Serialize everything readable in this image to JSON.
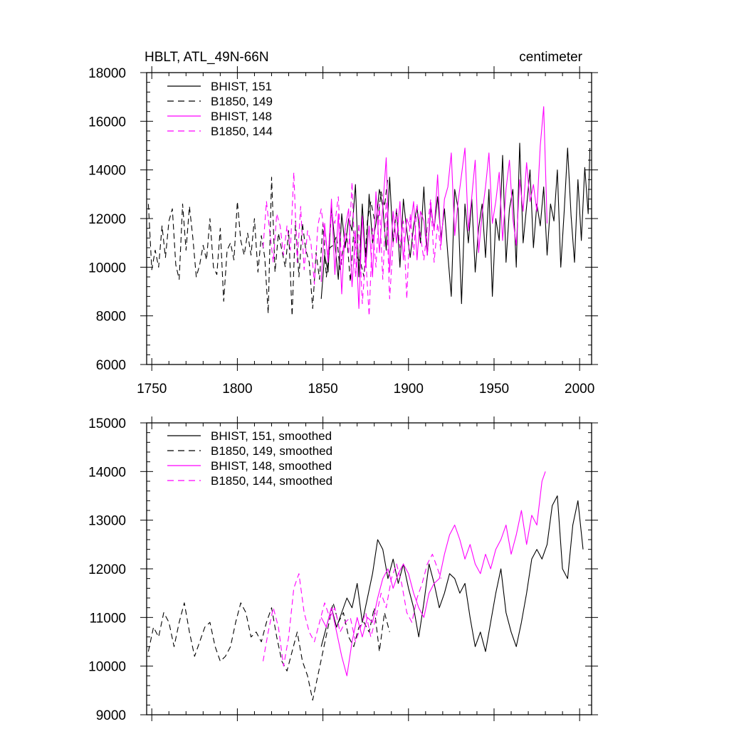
{
  "colors": {
    "black": "#000000",
    "magenta": "#ff00ff"
  },
  "chart_data": [
    {
      "type": "line",
      "title": "HBLT, ATL_49N-66N",
      "units": "centimeter",
      "xlim": [
        1747,
        2007
      ],
      "ylim": [
        6000,
        18000
      ],
      "x_ticks": [
        1750,
        1800,
        1850,
        1900,
        1950,
        2000
      ],
      "x_tick_labels": [
        "1750",
        "1800",
        "1850",
        "1900",
        "1950",
        "2000"
      ],
      "y_ticks": [
        6000,
        8000,
        10000,
        12000,
        14000,
        16000,
        18000
      ],
      "y_tick_labels": [
        "6000",
        "8000",
        "10000",
        "12000",
        "14000",
        "16000",
        "18000"
      ],
      "legend": [
        "BHIST, 151",
        "B1850, 149",
        "BHIST, 148",
        "B1850, 144"
      ],
      "series": [
        {
          "name": "BHIST, 151",
          "color": "#000000",
          "dash": false,
          "x": [
            1849,
            1851,
            1853,
            1855,
            1857,
            1859,
            1861,
            1863,
            1865,
            1867,
            1869,
            1871,
            1873,
            1875,
            1877,
            1879,
            1881,
            1883,
            1885,
            1887,
            1889,
            1891,
            1893,
            1895,
            1897,
            1899,
            1901,
            1903,
            1905,
            1907,
            1909,
            1911,
            1913,
            1915,
            1917,
            1919,
            1921,
            1923,
            1925,
            1927,
            1929,
            1931,
            1933,
            1935,
            1937,
            1939,
            1941,
            1943,
            1945,
            1947,
            1949,
            1951,
            1953,
            1955,
            1957,
            1959,
            1961,
            1963,
            1965,
            1967,
            1969,
            1971,
            1973,
            1975,
            1977,
            1979,
            1981,
            1983,
            1985,
            1987,
            1989,
            1991,
            1993,
            1995,
            1997,
            1999,
            2001,
            2003,
            2005,
            2006
          ],
          "y": [
            8700,
            10500,
            9800,
            12500,
            11000,
            9500,
            12200,
            10800,
            12000,
            11500,
            13400,
            9600,
            12600,
            10200,
            13000,
            11000,
            11800,
            13200,
            12500,
            10700,
            13700,
            11000,
            12400,
            10000,
            12800,
            11500,
            10400,
            11700,
            12500,
            11000,
            13300,
            10500,
            12400,
            11600,
            12900,
            11200,
            12400,
            10500,
            8800,
            13200,
            12400,
            8500,
            12600,
            11000,
            12800,
            9800,
            11600,
            12600,
            10400,
            13200,
            8800,
            12000,
            11100,
            14600,
            10200,
            12400,
            13200,
            10000,
            15100,
            11000,
            12500,
            14000,
            10800,
            12600,
            11700,
            13300,
            10500,
            12600,
            11900,
            14000,
            10000,
            12300,
            14900,
            12100,
            10200,
            13600,
            11100,
            14100,
            12200,
            14900
          ]
        },
        {
          "name": "B1850, 149",
          "color": "#000000",
          "dash": true,
          "x": [
            1748,
            1750,
            1752,
            1754,
            1756,
            1758,
            1760,
            1762,
            1764,
            1766,
            1768,
            1770,
            1772,
            1774,
            1776,
            1778,
            1780,
            1782,
            1784,
            1786,
            1788,
            1790,
            1792,
            1794,
            1796,
            1798,
            1800,
            1802,
            1804,
            1806,
            1808,
            1810,
            1812,
            1814,
            1816,
            1818,
            1820,
            1822,
            1824,
            1826,
            1828,
            1830,
            1832,
            1834,
            1836,
            1838,
            1840,
            1842,
            1844,
            1846,
            1848,
            1850,
            1852,
            1854,
            1856,
            1858,
            1860,
            1862,
            1864,
            1866,
            1868,
            1870,
            1872,
            1874,
            1876,
            1878,
            1880,
            1882,
            1884,
            1886,
            1888
          ],
          "y": [
            12600,
            9900,
            10700,
            10000,
            11700,
            10400,
            11900,
            12400,
            10100,
            9500,
            12600,
            10700,
            12500,
            11200,
            9600,
            10100,
            10900,
            10300,
            12000,
            10000,
            9700,
            11600,
            8600,
            10700,
            11000,
            10300,
            12700,
            11100,
            10500,
            11400,
            10500,
            12000,
            9800,
            11300,
            10400,
            8100,
            13700,
            9800,
            11400,
            10700,
            10000,
            11500,
            8000,
            11900,
            9600,
            11800,
            10700,
            10200,
            8300,
            10600,
            9500,
            11800,
            9600,
            10800,
            10900,
            11300,
            9900,
            10800,
            11200,
            9400,
            11500,
            10400,
            10200,
            9600,
            11900,
            12700,
            12000,
            11900,
            13100,
            12500,
            13700
          ]
        },
        {
          "name": "BHIST, 148",
          "color": "#ff00ff",
          "dash": false,
          "x": [
            1849,
            1851,
            1853,
            1855,
            1857,
            1859,
            1861,
            1863,
            1865,
            1867,
            1869,
            1871,
            1873,
            1875,
            1877,
            1879,
            1881,
            1883,
            1885,
            1887,
            1889,
            1891,
            1893,
            1895,
            1897,
            1899,
            1901,
            1903,
            1905,
            1907,
            1909,
            1911,
            1913,
            1915,
            1917,
            1919,
            1921,
            1923,
            1925,
            1927,
            1929,
            1931,
            1933,
            1935,
            1937,
            1939,
            1941,
            1943,
            1945,
            1947,
            1949,
            1951,
            1953,
            1955,
            1957,
            1959,
            1961,
            1963,
            1965,
            1967,
            1969,
            1971,
            1973,
            1975,
            1977,
            1979,
            1981
          ],
          "y": [
            9400,
            11800,
            10200,
            12800,
            9700,
            12200,
            8900,
            11600,
            12400,
            9200,
            11500,
            8300,
            12100,
            10000,
            11700,
            9600,
            13100,
            10600,
            12500,
            14500,
            9800,
            12300,
            11000,
            12700,
            10300,
            12000,
            11600,
            12700,
            10300,
            12300,
            11900,
            10500,
            12600,
            11500,
            13800,
            10900,
            12800,
            13300,
            14700,
            11300,
            12700,
            13800,
            14900,
            11500,
            12900,
            14400,
            10600,
            12200,
            13300,
            14700,
            11800,
            12700,
            13900,
            11100,
            13200,
            14400,
            12000,
            10900,
            13600,
            12300,
            14300,
            12700,
            13400,
            12300,
            15000,
            16600,
            11800
          ]
        },
        {
          "name": "B1850, 144",
          "color": "#ff00ff",
          "dash": true,
          "x": [
            1815,
            1817,
            1819,
            1821,
            1823,
            1825,
            1827,
            1829,
            1831,
            1833,
            1835,
            1837,
            1839,
            1841,
            1843,
            1845,
            1847,
            1849,
            1851,
            1853,
            1855,
            1857,
            1859,
            1861,
            1863,
            1865,
            1867,
            1869,
            1871,
            1873,
            1875,
            1877,
            1879,
            1881,
            1883,
            1885,
            1887,
            1889,
            1891,
            1893,
            1895,
            1897,
            1899,
            1901,
            1903,
            1905,
            1907,
            1909,
            1911,
            1913,
            1915,
            1917,
            1919
          ],
          "y": [
            10800,
            12700,
            11400,
            10200,
            12200,
            11700,
            10500,
            11700,
            10700,
            13900,
            10200,
            12500,
            9900,
            11500,
            11000,
            9300,
            11700,
            12400,
            11300,
            10500,
            12200,
            11800,
            12900,
            10100,
            11600,
            10600,
            13500,
            9600,
            11800,
            8500,
            10400,
            8000,
            11600,
            10000,
            12600,
            9500,
            12700,
            8700,
            11000,
            12400,
            10800,
            11900,
            8700,
            12200,
            10500,
            12600,
            11300,
            10300,
            11600,
            12800,
            10200,
            11800,
            10600
          ]
        }
      ]
    },
    {
      "type": "line",
      "title": "",
      "xlim": [
        1747,
        2007
      ],
      "ylim": [
        9000,
        15000
      ],
      "x_ticks": [
        1750,
        1800,
        1850,
        1900,
        1950,
        2000
      ],
      "y_ticks": [
        9000,
        10000,
        11000,
        12000,
        13000,
        14000,
        15000
      ],
      "y_tick_labels": [
        "9000",
        "10000",
        "11000",
        "12000",
        "13000",
        "14000",
        "15000"
      ],
      "legend": [
        "BHIST, 151, smoothed",
        "B1850, 149, smoothed",
        "BHIST, 148, smoothed",
        "B1850, 144, smoothed"
      ],
      "series": [
        {
          "name": "BHIST, 151, smoothed",
          "color": "#000000",
          "dash": false,
          "x": [
            1849,
            1852,
            1855,
            1858,
            1861,
            1864,
            1867,
            1870,
            1873,
            1876,
            1879,
            1882,
            1885,
            1888,
            1891,
            1894,
            1897,
            1900,
            1903,
            1906,
            1909,
            1912,
            1915,
            1918,
            1921,
            1924,
            1927,
            1930,
            1933,
            1936,
            1939,
            1942,
            1945,
            1948,
            1951,
            1954,
            1957,
            1960,
            1963,
            1966,
            1969,
            1972,
            1975,
            1978,
            1981,
            1984,
            1987,
            1990,
            1993,
            1996,
            1999,
            2002
          ],
          "y": [
            10400,
            10800,
            11200,
            10800,
            11100,
            11400,
            11200,
            11700,
            10900,
            11400,
            11900,
            12600,
            12400,
            11800,
            12200,
            11700,
            12100,
            11600,
            11200,
            10600,
            11300,
            12100,
            11700,
            11200,
            11500,
            11900,
            11800,
            11500,
            11700,
            11000,
            10400,
            10700,
            10300,
            10900,
            11500,
            12000,
            11100,
            10700,
            10400,
            10900,
            11500,
            12200,
            12400,
            12200,
            12500,
            13300,
            13500,
            12000,
            11800,
            12900,
            13400,
            12400
          ]
        },
        {
          "name": "B1850, 149, smoothed",
          "color": "#000000",
          "dash": true,
          "x": [
            1748,
            1751,
            1754,
            1757,
            1760,
            1763,
            1766,
            1769,
            1772,
            1775,
            1778,
            1781,
            1784,
            1787,
            1790,
            1793,
            1796,
            1799,
            1802,
            1805,
            1808,
            1811,
            1814,
            1817,
            1820,
            1823,
            1826,
            1829,
            1832,
            1835,
            1838,
            1841,
            1844,
            1847,
            1850,
            1853,
            1856,
            1859,
            1862,
            1865,
            1868,
            1871,
            1874,
            1877,
            1880,
            1883,
            1886,
            1889
          ],
          "y": [
            10300,
            10800,
            10600,
            11100,
            10900,
            10400,
            10900,
            11300,
            10700,
            10200,
            10500,
            10800,
            10900,
            10400,
            10100,
            10200,
            10400,
            10900,
            11300,
            11100,
            10600,
            10700,
            10500,
            10900,
            11200,
            10600,
            10100,
            9900,
            10300,
            10700,
            10100,
            9800,
            9300,
            9800,
            10300,
            10800,
            11300,
            10900,
            11100,
            10600,
            10400,
            10800,
            10900,
            10700,
            11200,
            10300,
            11100,
            10700
          ]
        },
        {
          "name": "BHIST, 148, smoothed",
          "color": "#ff00ff",
          "dash": false,
          "x": [
            1849,
            1852,
            1855,
            1858,
            1861,
            1864,
            1867,
            1870,
            1873,
            1876,
            1879,
            1882,
            1885,
            1888,
            1891,
            1894,
            1897,
            1900,
            1903,
            1906,
            1909,
            1912,
            1915,
            1918,
            1921,
            1924,
            1927,
            1930,
            1933,
            1936,
            1939,
            1942,
            1945,
            1948,
            1951,
            1954,
            1957,
            1960,
            1963,
            1966,
            1969,
            1972,
            1975,
            1978,
            1980
          ],
          "y": [
            11000,
            10800,
            11200,
            10700,
            10200,
            9800,
            10500,
            11000,
            10600,
            11000,
            10900,
            11400,
            11800,
            12000,
            11600,
            11900,
            12100,
            11900,
            11500,
            11200,
            11000,
            11500,
            11700,
            11800,
            12300,
            12700,
            12900,
            12600,
            12200,
            12500,
            12100,
            11900,
            12300,
            12000,
            12400,
            12600,
            12900,
            12300,
            12700,
            13200,
            12500,
            13100,
            12900,
            13800,
            14000
          ]
        },
        {
          "name": "B1850, 144, smoothed",
          "color": "#ff00ff",
          "dash": true,
          "x": [
            1815,
            1818,
            1821,
            1824,
            1827,
            1830,
            1833,
            1836,
            1839,
            1842,
            1845,
            1848,
            1851,
            1854,
            1857,
            1860,
            1863,
            1866,
            1869,
            1872,
            1875,
            1878,
            1881,
            1884,
            1887,
            1890,
            1893,
            1896,
            1899,
            1902,
            1905,
            1908,
            1911,
            1914,
            1917,
            1919
          ],
          "y": [
            10100,
            10700,
            11200,
            10800,
            10000,
            10600,
            11600,
            11900,
            11100,
            10700,
            10500,
            10900,
            11300,
            11000,
            11200,
            10700,
            10900,
            11000,
            10500,
            10800,
            11100,
            10600,
            11000,
            11500,
            11200,
            11800,
            12100,
            11700,
            11100,
            10900,
            11400,
            11700,
            12100,
            12300,
            12000,
            11800
          ]
        }
      ]
    }
  ]
}
